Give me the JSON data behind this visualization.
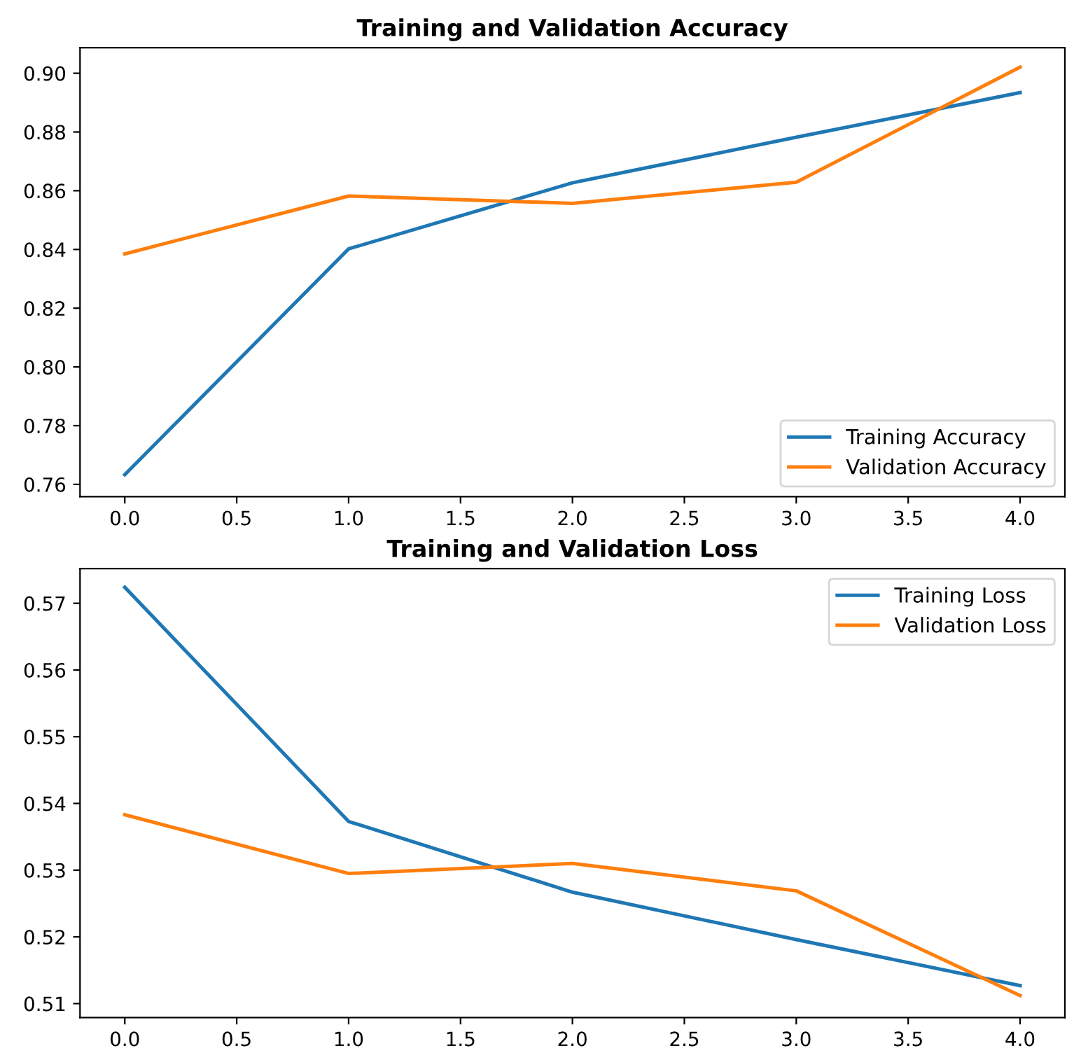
{
  "chart_data": [
    {
      "type": "line",
      "title": "Training and Validation Accuracy",
      "x": [
        0,
        1,
        2,
        3,
        4
      ],
      "series": [
        {
          "name": "Training Accuracy",
          "color": "#1f77b4",
          "values": [
            0.7633,
            0.8402,
            0.8627,
            0.8782,
            0.8934
          ]
        },
        {
          "name": "Validation Accuracy",
          "color": "#ff7f0e",
          "values": [
            0.8385,
            0.8582,
            0.8557,
            0.8629,
            0.9021
          ]
        }
      ],
      "xlim": [
        -0.2,
        4.2
      ],
      "xticks": [
        {
          "value": 0,
          "label": "0.0"
        },
        {
          "value": 0.5,
          "label": "0.5"
        },
        {
          "value": 1,
          "label": "1.0"
        },
        {
          "value": 1.5,
          "label": "1.5"
        },
        {
          "value": 2,
          "label": "2.0"
        },
        {
          "value": 2.5,
          "label": "2.5"
        },
        {
          "value": 3,
          "label": "3.0"
        },
        {
          "value": 3.5,
          "label": "3.5"
        },
        {
          "value": 4,
          "label": "4.0"
        }
      ],
      "ylim": [
        0.7558,
        0.9087
      ],
      "yticks": [
        {
          "value": 0.76,
          "label": "0.76"
        },
        {
          "value": 0.78,
          "label": "0.78"
        },
        {
          "value": 0.8,
          "label": "0.80"
        },
        {
          "value": 0.82,
          "label": "0.82"
        },
        {
          "value": 0.84,
          "label": "0.84"
        },
        {
          "value": 0.86,
          "label": "0.86"
        },
        {
          "value": 0.88,
          "label": "0.88"
        },
        {
          "value": 0.9,
          "label": "0.90"
        }
      ],
      "legend": "lower right",
      "grid": false
    },
    {
      "type": "line",
      "title": "Training and Validation Loss",
      "x": [
        0,
        1,
        2,
        3,
        4
      ],
      "series": [
        {
          "name": "Training Loss",
          "color": "#1f77b4",
          "values": [
            0.5724,
            0.5373,
            0.5267,
            0.5196,
            0.5127
          ]
        },
        {
          "name": "Validation Loss",
          "color": "#ff7f0e",
          "values": [
            0.5383,
            0.5295,
            0.531,
            0.5269,
            0.5112
          ]
        }
      ],
      "xlim": [
        -0.2,
        4.2
      ],
      "xticks": [
        {
          "value": 0,
          "label": "0.0"
        },
        {
          "value": 0.5,
          "label": "0.5"
        },
        {
          "value": 1,
          "label": "1.0"
        },
        {
          "value": 1.5,
          "label": "1.5"
        },
        {
          "value": 2,
          "label": "2.0"
        },
        {
          "value": 2.5,
          "label": "2.5"
        },
        {
          "value": 3,
          "label": "3.0"
        },
        {
          "value": 3.5,
          "label": "3.5"
        },
        {
          "value": 4,
          "label": "4.0"
        }
      ],
      "ylim": [
        0.5079,
        0.5752
      ],
      "yticks": [
        0.51,
        0.52,
        0.53,
        0.54,
        0.55,
        0.56,
        0.57
      ],
      "legend": "upper right",
      "grid": false
    }
  ]
}
